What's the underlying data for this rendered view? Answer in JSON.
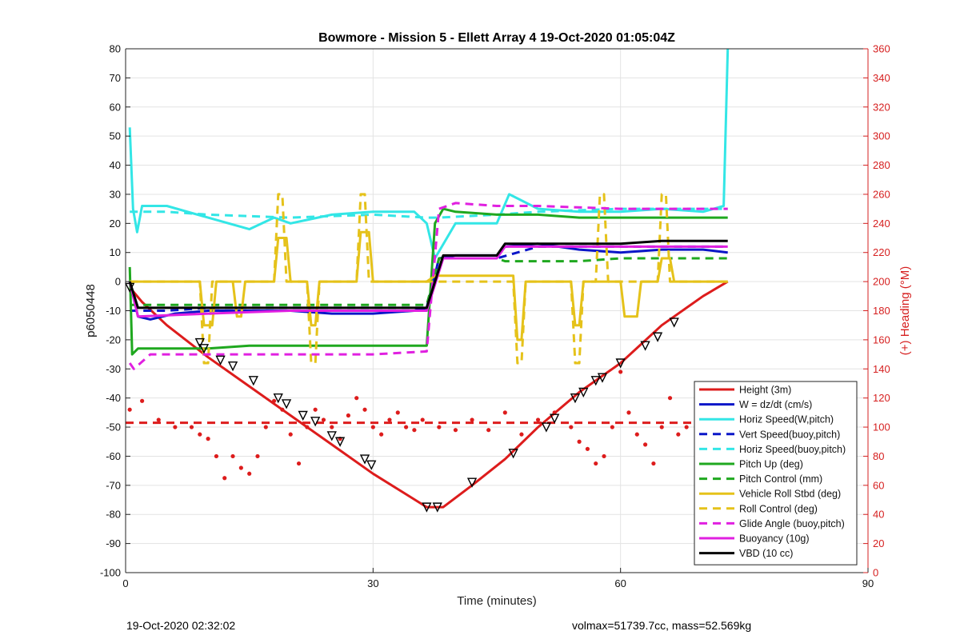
{
  "chart_data": {
    "type": "line",
    "title": "Bowmore - Mission 5 - Ellett Array 4 19-Oct-2020 01:05:04Z",
    "xlabel": "Time (minutes)",
    "ylabel": "p6050448",
    "y2label": "(+) Heading (°M)",
    "xlim": [
      0,
      90
    ],
    "ylim": [
      -100,
      80
    ],
    "y2lim": [
      0,
      360
    ],
    "xticks": [
      "0",
      "30",
      "60",
      "90"
    ],
    "yticks": [
      "80",
      "70",
      "60",
      "50",
      "40",
      "30",
      "20",
      "10",
      "0",
      "-10",
      "-20",
      "-30",
      "-40",
      "-50",
      "-60",
      "-70",
      "-80",
      "-90",
      "-100"
    ],
    "y2ticks": [
      "360",
      "340",
      "320",
      "300",
      "280",
      "260",
      "240",
      "220",
      "200",
      "180",
      "160",
      "140",
      "120",
      "100",
      "80",
      "60",
      "40",
      "20",
      "0"
    ],
    "grid": true,
    "legend_position": "lower-right",
    "colors": {
      "red": "#dd1c1c",
      "blue": "#0a16c8",
      "cyan": "#33e6e6",
      "green": "#1fa81f",
      "yellow": "#e5c21a",
      "magenta": "#e020e0",
      "black": "#000000",
      "axis_right": "#d62020"
    },
    "series": [
      {
        "name": "Height (3m)",
        "color": "#dd1c1c",
        "style": "solid",
        "x": [
          0.5,
          2,
          5,
          10,
          15,
          20,
          25,
          30,
          36.5,
          38.5,
          42,
          46,
          50,
          55,
          60,
          65,
          70,
          73
        ],
        "y": [
          -2,
          -7,
          -15,
          -26,
          -36,
          -46,
          -56,
          -66,
          -77.5,
          -77.5,
          -70,
          -61,
          -50,
          -38,
          -28,
          -15,
          -5,
          0
        ]
      },
      {
        "name": "W = dz/dt (cm/s)",
        "color": "#0a16c8",
        "style": "solid",
        "x": [
          0.5,
          1.5,
          3,
          6,
          10,
          15,
          20,
          25,
          30,
          35,
          36.5,
          38,
          40,
          45,
          46,
          50,
          55,
          60,
          65,
          70,
          73
        ],
        "y": [
          0,
          -12,
          -13,
          -11,
          -10,
          -10,
          -10,
          -11,
          -11,
          -10,
          -9,
          8,
          9,
          9,
          12,
          13,
          11,
          10,
          11,
          11,
          10
        ]
      },
      {
        "name": "Horiz Speed(W,pitch)",
        "color": "#33e6e6",
        "style": "solid",
        "x": [
          0.5,
          0.9,
          1.4,
          2,
          5,
          10,
          15,
          18,
          20,
          25,
          30,
          35,
          36.5,
          37.5,
          40,
          45,
          46.5,
          50,
          55,
          60,
          65,
          70,
          72.5,
          73
        ],
        "y": [
          53,
          25,
          17,
          26,
          26,
          22,
          18,
          22,
          20,
          23,
          24,
          24,
          20,
          8,
          20,
          20,
          30,
          25,
          24,
          24,
          25,
          24,
          26,
          80
        ]
      },
      {
        "name": "Vert Speed(buoy,pitch)",
        "color": "#0a16c8",
        "style": "dashed",
        "x": [
          0.5,
          5,
          10,
          20,
          30,
          36.5,
          38,
          45,
          50,
          60,
          70,
          73
        ],
        "y": [
          -10,
          -10,
          -9,
          -9,
          -9,
          -9,
          8,
          8,
          12,
          12,
          12,
          12
        ]
      },
      {
        "name": "Horiz Speed(buoy,pitch)",
        "color": "#33e6e6",
        "style": "dashed",
        "x": [
          0.5,
          5,
          10,
          20,
          30,
          36.5,
          38,
          45,
          50,
          60,
          70,
          73
        ],
        "y": [
          24,
          24,
          23,
          22,
          23,
          22,
          22,
          23,
          24,
          25,
          25,
          25
        ]
      },
      {
        "name": "Pitch Up (deg)",
        "color": "#1fa81f",
        "style": "solid",
        "x": [
          0.5,
          0.8,
          1.5,
          5,
          10,
          15,
          20,
          25,
          30,
          36.5,
          37.5,
          38.5,
          40,
          45,
          50,
          55,
          60,
          65,
          70,
          73
        ],
        "y": [
          5,
          -25,
          -23,
          -23,
          -23,
          -22,
          -22,
          -22,
          -22,
          -22,
          20,
          25,
          24,
          23,
          23,
          22,
          22,
          22,
          22,
          22
        ]
      },
      {
        "name": "Pitch Control (mm)",
        "color": "#1fa81f",
        "style": "dashed",
        "x": [
          0.5,
          2,
          10,
          20,
          30,
          36.5,
          38,
          45,
          46,
          55,
          60,
          70,
          73
        ],
        "y": [
          -8,
          -8,
          -8,
          -8,
          -8,
          -8,
          8,
          8,
          7,
          7,
          8,
          8,
          8
        ]
      },
      {
        "name": "Vehicle Roll Stbd (deg)",
        "color": "#e5c21a",
        "style": "solid",
        "x": [
          0.5,
          9,
          9.5,
          10.5,
          11,
          13,
          13.5,
          14,
          14.5,
          18,
          18.5,
          19.5,
          20,
          22,
          22.5,
          23,
          23.5,
          28,
          28.5,
          29.5,
          30,
          36.5,
          37.5,
          47,
          47.5,
          48,
          48.5,
          54,
          54.5,
          55,
          55.5,
          60,
          60.5,
          62,
          62.5,
          64.5,
          65,
          66,
          66.5,
          72,
          73
        ],
        "y": [
          0,
          0,
          -15,
          -15,
          0,
          0,
          -12,
          -12,
          0,
          0,
          15,
          15,
          0,
          0,
          -15,
          -15,
          0,
          0,
          17,
          17,
          0,
          0,
          2,
          2,
          -20,
          -20,
          0,
          0,
          -15,
          -15,
          0,
          0,
          -12,
          -12,
          0,
          0,
          8,
          8,
          0,
          0,
          0
        ]
      },
      {
        "name": "Roll Control (deg)",
        "color": "#e5c21a",
        "style": "dashed",
        "x": [
          0.5,
          9,
          9.5,
          10,
          10.5,
          18,
          18.5,
          19,
          19.5,
          22,
          22.5,
          23,
          23.5,
          28,
          28.5,
          29,
          29.5,
          47,
          47.5,
          48,
          48.5,
          54,
          54.5,
          55,
          55.5,
          57,
          57.5,
          58,
          58.5,
          64.5,
          65,
          65.5,
          66,
          72,
          73
        ],
        "y": [
          0,
          0,
          -28,
          -28,
          0,
          0,
          30,
          30,
          0,
          0,
          -28,
          -28,
          0,
          0,
          30,
          30,
          0,
          0,
          -28,
          -28,
          0,
          0,
          -28,
          -28,
          0,
          0,
          30,
          30,
          0,
          0,
          30,
          30,
          0,
          0,
          0
        ]
      },
      {
        "name": "Glide Angle (buoy,pitch)",
        "color": "#e020e0",
        "style": "dashed",
        "x": [
          0.5,
          1,
          3,
          10,
          20,
          30,
          36.5,
          38,
          40,
          45,
          50,
          60,
          70,
          73
        ],
        "y": [
          -28,
          -30,
          -25,
          -25,
          -25,
          -25,
          -24,
          25,
          27,
          26,
          26,
          25,
          25,
          25
        ]
      },
      {
        "name": "Buoyancy (10g)",
        "color": "#e020e0",
        "style": "solid",
        "x": [
          0.5,
          1.5,
          10,
          20,
          30,
          36.5,
          38.5,
          45,
          46,
          55,
          60,
          70,
          73
        ],
        "y": [
          0,
          -12,
          -11,
          -10,
          -10,
          -10,
          8,
          8,
          12,
          12,
          12,
          12,
          12
        ]
      },
      {
        "name": "VBD (10 cc)",
        "color": "#000000",
        "style": "solid",
        "x": [
          0.5,
          1.5,
          10,
          20,
          30,
          36.5,
          38.5,
          45,
          46,
          55,
          60,
          65,
          70,
          73
        ],
        "y": [
          0,
          -9,
          -9,
          -9,
          -9,
          -9,
          9,
          9,
          13,
          13,
          13,
          14,
          14,
          14
        ]
      },
      {
        "name": "",
        "color": "#dd1c1c",
        "style": "dotted",
        "axis": "right",
        "x": [
          0.5,
          2,
          4,
          6,
          8,
          9,
          10,
          11,
          12,
          13,
          14,
          15,
          16,
          17,
          18,
          19,
          20,
          21,
          22,
          23,
          24,
          25,
          26,
          27,
          28,
          29,
          30,
          31,
          32,
          33,
          34,
          35,
          36,
          38,
          40,
          42,
          44,
          46,
          48,
          50,
          52,
          54,
          55,
          56,
          57,
          58,
          59,
          60,
          61,
          62,
          63,
          64,
          65,
          66,
          67,
          68,
          70,
          72
        ],
        "y": [
          112,
          118,
          105,
          100,
          100,
          95,
          92,
          80,
          65,
          80,
          72,
          68,
          80,
          100,
          118,
          112,
          95,
          75,
          100,
          112,
          105,
          100,
          92,
          108,
          120,
          112,
          100,
          95,
          105,
          110,
          100,
          98,
          105,
          100,
          98,
          105,
          98,
          110,
          95,
          105,
          110,
          100,
          90,
          85,
          75,
          80,
          100,
          138,
          110,
          95,
          88,
          75,
          100,
          120,
          95,
          100,
          95,
          100
        ]
      },
      {
        "name": "",
        "color": "#dd1c1c",
        "style": "dashed",
        "axis": "right",
        "x": [
          0,
          73
        ],
        "y": [
          103,
          103
        ]
      }
    ],
    "markers": {
      "x": [
        0.5,
        9,
        9.5,
        11.5,
        13,
        15.5,
        18.5,
        19.5,
        21.5,
        23,
        25,
        26,
        29,
        29.8,
        36.5,
        37.8,
        42,
        47,
        51,
        52,
        54.5,
        55.5,
        57,
        57.8,
        60,
        63,
        64.5,
        66.5
      ],
      "y": [
        -2,
        -21,
        -23,
        -27,
        -29,
        -34,
        -40,
        -42,
        -46,
        -48,
        -53,
        -55,
        -61,
        -63,
        -77.5,
        -77.5,
        -69,
        -59,
        -50,
        -47,
        -40,
        -38,
        -34,
        -33,
        -28,
        -22,
        -19,
        -14
      ]
    }
  },
  "footer": {
    "left": "19-Oct-2020 02:32:02",
    "right": "volmax=51739.7cc, mass=52.569kg"
  }
}
